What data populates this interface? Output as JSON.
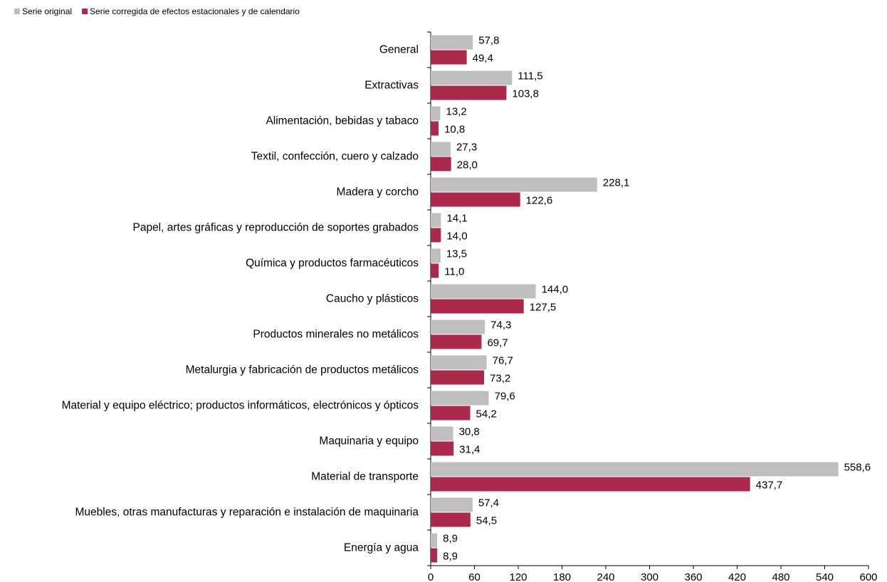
{
  "chart_data": {
    "type": "barh",
    "categories": [
      "General",
      "Extractivas",
      "Alimentación, bebidas y tabaco",
      "Textil, confección, cuero y calzado",
      "Madera y corcho",
      "Papel, artes gráficas y reproducción de soportes grabados",
      "Química y productos farmacéuticos",
      "Caucho y plásticos",
      "Productos minerales no metálicos",
      "Metalurgia y fabricación de productos metálicos",
      "Material y equipo eléctrico; productos informáticos, electrónicos y ópticos",
      "Maquinaria y equipo",
      "Material de transporte",
      "Muebles, otras manufacturas y reparación e instalación de maquinaria",
      "Energía y agua"
    ],
    "series": [
      {
        "name": "Serie original",
        "color": "#bfbfbf",
        "values": [
          57.8,
          111.5,
          13.2,
          27.3,
          228.1,
          14.1,
          13.5,
          144.0,
          74.3,
          76.7,
          79.6,
          30.8,
          558.6,
          57.4,
          8.9
        ],
        "value_labels": [
          "57,8",
          "111,5",
          "13,2",
          "27,3",
          "228,1",
          "14,1",
          "13,5",
          "144,0",
          "74,3",
          "76,7",
          "79,6",
          "30,8",
          "558,6",
          "57,4",
          "8,9"
        ]
      },
      {
        "name": "Serie corregida de efectos estacionales y de calendario",
        "color": "#ab2a4c",
        "values": [
          49.4,
          103.8,
          10.8,
          28.0,
          122.6,
          14.0,
          11.0,
          127.5,
          69.7,
          73.2,
          54.2,
          31.4,
          437.7,
          54.5,
          8.9
        ],
        "value_labels": [
          "49,4",
          "103,8",
          "10,8",
          "28,0",
          "122,6",
          "14,0",
          "11,0",
          "127,5",
          "69,7",
          "73,2",
          "54,2",
          "31,4",
          "437,7",
          "54,5",
          "8,9"
        ]
      }
    ],
    "xlim": [
      0,
      600
    ],
    "xticks": [
      0,
      60,
      120,
      180,
      240,
      300,
      360,
      420,
      480,
      540,
      600
    ]
  }
}
